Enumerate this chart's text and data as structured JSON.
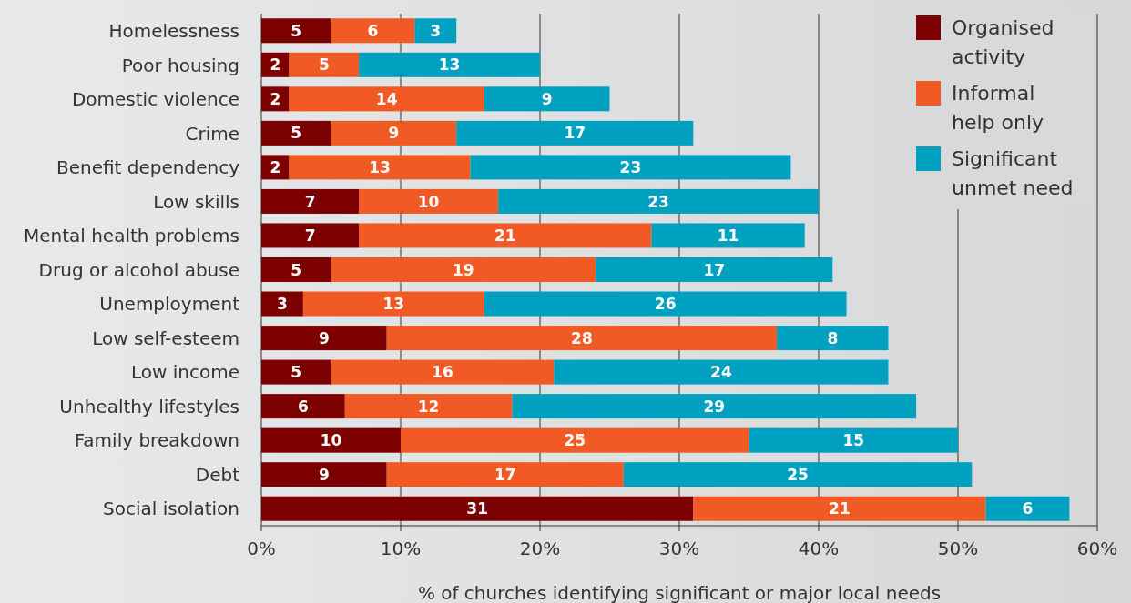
{
  "chart_data": {
    "type": "bar",
    "orientation": "horizontal",
    "stacked": true,
    "xlabel": "% of churches identifying significant or major local needs",
    "categories": [
      "Homelessness",
      "Poor housing",
      "Domestic violence",
      "Crime",
      "Benefit dependency",
      "Low skills",
      "Mental health problems",
      "Drug or alcohol abuse",
      "Unemployment",
      "Low self-esteem",
      "Low income",
      "Unhealthy lifestyles",
      "Family breakdown",
      "Debt",
      "Social isolation"
    ],
    "series": [
      {
        "name": "Organised activity",
        "color": "#7d0000",
        "values": [
          5,
          2,
          2,
          5,
          2,
          7,
          7,
          5,
          3,
          9,
          5,
          6,
          10,
          9,
          31
        ]
      },
      {
        "name": "Informal help only",
        "color": "#f15a24",
        "values": [
          6,
          5,
          14,
          9,
          13,
          10,
          21,
          19,
          13,
          28,
          16,
          12,
          25,
          17,
          21
        ]
      },
      {
        "name": "Significant unmet need",
        "color": "#00a0c0",
        "values": [
          3,
          13,
          9,
          17,
          23,
          23,
          11,
          17,
          26,
          8,
          24,
          29,
          15,
          25,
          6
        ]
      }
    ],
    "xlim": [
      0,
      60
    ],
    "xticks": [
      {
        "value": 0,
        "label": "0%"
      },
      {
        "value": 10,
        "label": "10%"
      },
      {
        "value": 20,
        "label": "20%"
      },
      {
        "value": 30,
        "label": "30%"
      },
      {
        "value": 40,
        "label": "40%"
      },
      {
        "value": 50,
        "label": "50%"
      },
      {
        "value": 60,
        "label": "60%"
      }
    ],
    "grid": "x",
    "legend": "top right",
    "data_labels": true
  }
}
